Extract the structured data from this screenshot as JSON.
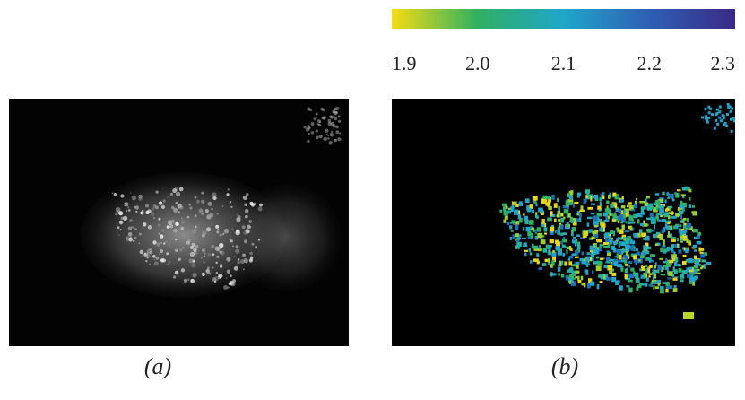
{
  "colorbar": {
    "clim": [
      1.9,
      2.3
    ],
    "ticks": [
      1.9,
      {
        "value": 2,
        "label": "2.0"
      },
      2.1,
      2.2,
      2.3
    ],
    "colors": [
      "#f6dd12",
      "#2fb062",
      "#1fa6c9",
      "#2f5fb5",
      "#3a2a86"
    ]
  },
  "panels": [
    {
      "label": "(a)"
    },
    {
      "label": "(b)"
    }
  ]
}
